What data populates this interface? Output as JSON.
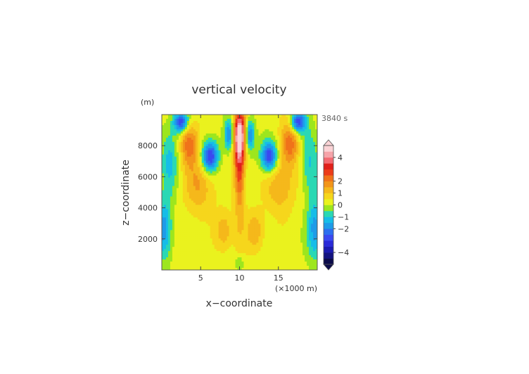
{
  "chart_data": {
    "type": "heatmap",
    "title": "vertical velocity",
    "xlabel": "x−coordinate",
    "ylabel": "z−coordinate",
    "x_unit": "(×1000 m)",
    "y_unit": "(m)",
    "time_label": "3840 s",
    "xlim": [
      0,
      20
    ],
    "ylim": [
      0,
      10000
    ],
    "x_ticks": [
      5,
      10,
      15
    ],
    "x_tick_labels": [
      "5",
      "10",
      "15"
    ],
    "y_ticks": [
      2000,
      4000,
      6000,
      8000
    ],
    "y_tick_labels": [
      "2000",
      "4000",
      "6000",
      "8000"
    ],
    "colorbar": {
      "levels": [
        -5,
        -4.5,
        -4,
        -3.5,
        -3,
        -2.5,
        -2,
        -1.5,
        -1,
        -0.5,
        0,
        0.5,
        1,
        1.5,
        2,
        2.5,
        3,
        3.5,
        4,
        4.5,
        5
      ],
      "colors": [
        "#0b0b4a",
        "#131380",
        "#1b1bb0",
        "#2a2ad8",
        "#3a49f0",
        "#2d6fef",
        "#1e9be8",
        "#16bde8",
        "#2ad8b4",
        "#9de61e",
        "#eaf21e",
        "#f6d61c",
        "#f5b81b",
        "#f2951a",
        "#f0731a",
        "#ec3c1a",
        "#e0201a",
        "#f36a72",
        "#f6a4aa",
        "#fbd3d6"
      ],
      "label_values": [
        4,
        2,
        1,
        0,
        -1,
        -2,
        -4
      ],
      "label_texts": [
        "4",
        "2",
        "1",
        "0",
        "−1",
        "−2",
        "−4"
      ]
    },
    "field_features": [
      {
        "x": 10,
        "z": 8700,
        "w": 4.8,
        "sx": 0.55,
        "sz": 1100
      },
      {
        "x": 10,
        "z": 6500,
        "w": 2.0,
        "sx": 0.45,
        "sz": 1400
      },
      {
        "x": 10,
        "z": 4000,
        "w": 0.8,
        "sx": 0.5,
        "sz": 2200
      },
      {
        "x": 8.7,
        "z": 8700,
        "w": -2.4,
        "sx": 0.45,
        "sz": 700
      },
      {
        "x": 11.3,
        "z": 8700,
        "w": -2.4,
        "sx": 0.45,
        "sz": 700
      },
      {
        "x": 6.2,
        "z": 7300,
        "w": -3.4,
        "sx": 0.75,
        "sz": 700
      },
      {
        "x": 13.8,
        "z": 7300,
        "w": -3.4,
        "sx": 0.75,
        "sz": 700
      },
      {
        "x": 3.5,
        "z": 8200,
        "w": 2.1,
        "sx": 0.8,
        "sz": 1000
      },
      {
        "x": 16.5,
        "z": 8200,
        "w": 2.1,
        "sx": 0.8,
        "sz": 1000
      },
      {
        "x": 2.5,
        "z": 9500,
        "w": -3.2,
        "sx": 0.7,
        "sz": 500
      },
      {
        "x": 17.5,
        "z": 9500,
        "w": -3.2,
        "sx": 0.7,
        "sz": 500
      },
      {
        "x": 1.0,
        "z": 7000,
        "w": -1.3,
        "sx": 0.8,
        "sz": 1500
      },
      {
        "x": 19.0,
        "z": 7000,
        "w": -1.3,
        "sx": 0.8,
        "sz": 1500
      },
      {
        "x": 0.3,
        "z": 2600,
        "w": -2.0,
        "sx": 0.7,
        "sz": 1400
      },
      {
        "x": 19.7,
        "z": 2600,
        "w": -2.0,
        "sx": 0.7,
        "sz": 1400
      },
      {
        "x": 8.0,
        "z": 2500,
        "w": 1.2,
        "sx": 0.8,
        "sz": 900
      },
      {
        "x": 12.0,
        "z": 2500,
        "w": 1.2,
        "sx": 0.8,
        "sz": 900
      },
      {
        "x": 4.8,
        "z": 5500,
        "w": 1.3,
        "sx": 1.3,
        "sz": 1300
      },
      {
        "x": 15.2,
        "z": 5500,
        "w": 1.3,
        "sx": 1.3,
        "sz": 1300
      },
      {
        "x": 10,
        "z": 400,
        "w": -1.0,
        "sx": 0.35,
        "sz": 350
      }
    ]
  }
}
